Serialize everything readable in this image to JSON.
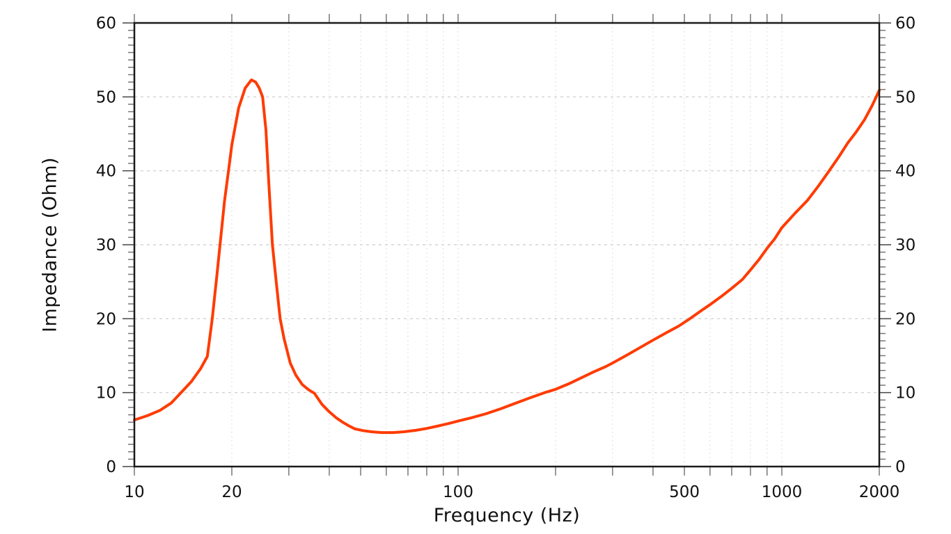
{
  "figure": {
    "background_color": "#ffffff",
    "plot_border_color": "#1a1a1a",
    "grid_color_horizontal": "#c9c9c9",
    "grid_color_vertical": "#dcdcdc",
    "tick_color": "#777777",
    "major_tick_color": "#444444",
    "tick_label_color": "#111111"
  },
  "chart_data": {
    "type": "line",
    "title": "",
    "xlabel": "Frequency (Hz)",
    "ylabel": "Impedance (Ohm)",
    "x_scale": "log",
    "xlim": [
      10,
      2000
    ],
    "ylim": [
      0,
      60
    ],
    "grid": true,
    "legend": "none",
    "x_major_ticks": [
      {
        "value": 10,
        "label": "10"
      },
      {
        "value": 20,
        "label": "20"
      },
      {
        "value": 100,
        "label": "100"
      },
      {
        "value": 500,
        "label": "500"
      },
      {
        "value": 1000,
        "label": "1000"
      },
      {
        "value": 2000,
        "label": "2000"
      }
    ],
    "x_minor_ticks": [
      30,
      40,
      50,
      60,
      70,
      80,
      90,
      200,
      300,
      400,
      600,
      700,
      800,
      900
    ],
    "y_major_ticks": [
      {
        "value": 0,
        "label": "0"
      },
      {
        "value": 10,
        "label": "10"
      },
      {
        "value": 20,
        "label": "20"
      },
      {
        "value": 30,
        "label": "30"
      },
      {
        "value": 40,
        "label": "40"
      },
      {
        "value": 50,
        "label": "50"
      },
      {
        "value": 60,
        "label": "60"
      }
    ],
    "y_minor_tick_step": 1,
    "y_labels_on_both_sides": true,
    "x_ticks_on_top_and_bottom": true,
    "series": [
      {
        "name": "Impedance",
        "color": "#ff3b00",
        "line_width": 4,
        "points": [
          [
            10,
            6.3
          ],
          [
            11,
            6.9
          ],
          [
            12,
            7.6
          ],
          [
            13,
            8.6
          ],
          [
            14,
            10.1
          ],
          [
            15,
            11.5
          ],
          [
            16,
            13.2
          ],
          [
            16.8,
            14.9
          ],
          [
            17.4,
            20.0
          ],
          [
            18,
            26.0
          ],
          [
            19,
            36.0
          ],
          [
            19.6,
            40.5
          ],
          [
            20,
            43.5
          ],
          [
            21,
            48.5
          ],
          [
            22,
            51.2
          ],
          [
            23,
            52.3
          ],
          [
            23.7,
            52.0
          ],
          [
            24.3,
            51.2
          ],
          [
            24.9,
            50.0
          ],
          [
            25.5,
            45.5
          ],
          [
            26,
            38.5
          ],
          [
            26.7,
            30.0
          ],
          [
            27.5,
            24.5
          ],
          [
            28.2,
            20.0
          ],
          [
            29,
            17.3
          ],
          [
            30.3,
            14.0
          ],
          [
            31.5,
            12.4
          ],
          [
            33,
            11.1
          ],
          [
            34.5,
            10.4
          ],
          [
            36,
            9.9
          ],
          [
            38,
            8.4
          ],
          [
            40,
            7.4
          ],
          [
            42,
            6.6
          ],
          [
            44,
            6.0
          ],
          [
            46,
            5.5
          ],
          [
            48,
            5.1
          ],
          [
            51,
            4.85
          ],
          [
            54,
            4.7
          ],
          [
            58,
            4.6
          ],
          [
            63,
            4.6
          ],
          [
            68,
            4.7
          ],
          [
            74,
            4.9
          ],
          [
            80,
            5.15
          ],
          [
            87,
            5.5
          ],
          [
            94,
            5.85
          ],
          [
            100,
            6.15
          ],
          [
            110,
            6.6
          ],
          [
            122,
            7.15
          ],
          [
            135,
            7.8
          ],
          [
            150,
            8.55
          ],
          [
            168,
            9.35
          ],
          [
            185,
            10.0
          ],
          [
            200,
            10.45
          ],
          [
            220,
            11.2
          ],
          [
            240,
            12.0
          ],
          [
            262,
            12.8
          ],
          [
            285,
            13.5
          ],
          [
            300,
            14.0
          ],
          [
            330,
            15.0
          ],
          [
            365,
            16.1
          ],
          [
            400,
            17.1
          ],
          [
            440,
            18.1
          ],
          [
            480,
            19.0
          ],
          [
            520,
            20.0
          ],
          [
            560,
            21.0
          ],
          [
            600,
            21.9
          ],
          [
            650,
            23.0
          ],
          [
            700,
            24.1
          ],
          [
            755,
            25.3
          ],
          [
            800,
            26.6
          ],
          [
            850,
            28.0
          ],
          [
            900,
            29.5
          ],
          [
            950,
            30.8
          ],
          [
            1000,
            32.3
          ],
          [
            1100,
            34.3
          ],
          [
            1200,
            36.0
          ],
          [
            1300,
            38.0
          ],
          [
            1400,
            40.0
          ],
          [
            1500,
            41.9
          ],
          [
            1600,
            43.8
          ],
          [
            1700,
            45.3
          ],
          [
            1800,
            46.9
          ],
          [
            1900,
            48.8
          ],
          [
            2000,
            50.9
          ]
        ]
      }
    ],
    "annotations": {
      "resonance_peak": {
        "frequency_hz": 23,
        "impedance_ohm": 52.3
      },
      "minimum": {
        "frequency_hz": 60,
        "impedance_ohm": 4.6
      },
      "value_at_right_edge_ohm": 50.9
    }
  }
}
